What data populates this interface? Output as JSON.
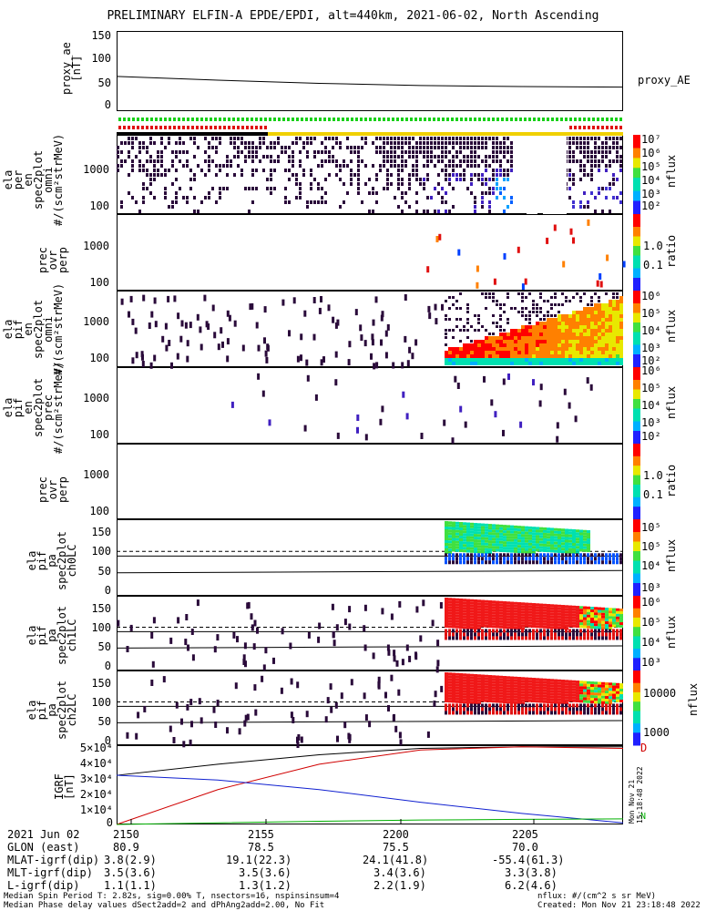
{
  "title": "PRELIMINARY ELFIN-A EPDE/EPDI, alt=440km, 2021-06-02, North Ascending",
  "panels": [
    {
      "id": "proxy",
      "label": "proxy_ae\n[nT]",
      "ticks": [
        "150",
        "100",
        "50",
        "0"
      ],
      "right_label": "proxy_AE"
    },
    {
      "id": "epde-omni",
      "label": "ela\nper\nen\nspec2plot\nomni\n#/(scm²strMeV)",
      "ticks": [
        "1000",
        "100"
      ],
      "cb_unit": "nflux"
    },
    {
      "id": "epde-prec",
      "label": "prec\novr\nperp",
      "ticks": [
        "1000",
        "100"
      ],
      "cb_unit": "ratio"
    },
    {
      "id": "epdi-omni",
      "label": "ela\npif\nen\nspec2plot\nomni\n#/(scm²strMeV)",
      "ticks": [
        "1000",
        "100"
      ],
      "cb_unit": "nflux"
    },
    {
      "id": "epdi-prec",
      "label": "ela\npif\nen\nspec2plot\nprec\n#/(scm²strMeV)",
      "ticks": [
        "1000",
        "100"
      ],
      "cb_unit": "nflux"
    },
    {
      "id": "epdi-ratio",
      "label": "prec\novr\nperp",
      "ticks": [
        "1000",
        "100"
      ],
      "cb_unit": "ratio"
    },
    {
      "id": "pa-ch0",
      "label": "ela\npif\npa\nspec2plot\nch0LC",
      "ticks": [
        "150",
        "100",
        "50",
        "0"
      ],
      "cb_unit": "nflux"
    },
    {
      "id": "pa-ch1",
      "label": "ela\npif\npa\nspec2plot\nch1LC",
      "ticks": [
        "150",
        "100",
        "50",
        "0"
      ],
      "cb_unit": "nflux"
    },
    {
      "id": "pa-ch2",
      "label": "ela\npif\npa\nspec2plot\nch2LC",
      "ticks": [
        "150",
        "100",
        "50",
        "0"
      ],
      "cb_unit": "nflux"
    },
    {
      "id": "igrf",
      "label": "IGRF\n[nT]",
      "ticks": [
        "5×10⁴",
        "4×10⁴",
        "3×10⁴",
        "2×10⁴",
        "1×10⁴",
        "0"
      ]
    }
  ],
  "colorbars": {
    "nflux1": [
      "10⁷",
      "10⁶",
      "10⁵",
      "10⁴",
      "10³",
      "10²"
    ],
    "ratio": [
      "1.0",
      "0.1"
    ],
    "nflux2": [
      "10⁶",
      "10⁵",
      "10⁴",
      "10³",
      "10²"
    ],
    "nflux3": [
      "10⁶",
      "10⁵",
      "10⁴",
      "10³",
      "10²"
    ],
    "nflux4": [
      "10⁵",
      "10⁵",
      "10⁴",
      "10³"
    ],
    "nflux5": [
      "10⁶",
      "10⁵",
      "10⁴",
      "10³"
    ],
    "nflux6": [
      "10000",
      "1000"
    ]
  },
  "igrf_labels": [
    "D",
    "N"
  ],
  "timestamp_vertical": "Mon Nov 21 15:18:48 2022",
  "axis_rows": [
    {
      "label": "2021 Jun 02",
      "values": [
        "2150",
        "2155",
        "2200",
        "2205"
      ]
    },
    {
      "label": "GLON (east)",
      "values": [
        "80.9",
        "78.5",
        "75.5",
        "70.0"
      ]
    },
    {
      "label": "MLAT-igrf(dip)",
      "values": [
        "3.8(2.9)",
        "19.1(22.3)",
        "24.1(41.8)",
        "-55.4(61.3)"
      ]
    },
    {
      "label": "MLT-igrf(dip)",
      "values": [
        "3.5(3.6)",
        "3.5(3.6)",
        "3.4(3.6)",
        "3.3(3.8)"
      ]
    },
    {
      "label": "L-igrf(dip)",
      "values": [
        "1.1(1.1)",
        "1.3(1.2)",
        "2.2(1.9)",
        "6.2(4.6)"
      ]
    }
  ],
  "footer": {
    "line1": "Median Spin Period T: 2.82s, sig=0.00% T, nsectors=16, nspinsinsum=4",
    "line2": "Median Phase delay values dSect2add=2 and dPhAng2add=2.00, No Fit",
    "right1": "nflux: #/(cm^2 s sr MeV)",
    "right2": "Created: Mon Nov 21 23:18:48 2022"
  },
  "chart_data": {
    "type": "line",
    "title": "PRELIMINARY ELFIN-A EPDE/EPDI, alt=440km, 2021-06-02, North Ascending",
    "x_ticks": [
      "2150",
      "2155",
      "2200",
      "2205"
    ],
    "proxy_ae": {
      "ylabel": "proxy_ae [nT]",
      "ylim": [
        0,
        150
      ],
      "x": [
        0,
        0.2,
        0.4,
        0.6,
        0.8,
        1.0
      ],
      "y": [
        65,
        58,
        52,
        48,
        46,
        45
      ]
    },
    "igrf": {
      "ylabel": "IGRF [nT]",
      "ylim": [
        0,
        50000
      ],
      "series": [
        {
          "name": "D",
          "color": "#000000",
          "x": [
            0,
            0.2,
            0.4,
            0.6,
            0.8,
            1.0
          ],
          "y": [
            31000,
            38000,
            44000,
            48000,
            49000,
            49000
          ]
        },
        {
          "name": "",
          "color": "#d00000",
          "x": [
            0,
            0.2,
            0.4,
            0.6,
            0.8,
            1.0
          ],
          "y": [
            0,
            22000,
            38000,
            47000,
            49000,
            48000
          ]
        },
        {
          "name": "",
          "color": "#1020d0",
          "x": [
            0,
            0.2,
            0.4,
            0.6,
            0.8,
            1.0
          ],
          "y": [
            31000,
            28000,
            22000,
            14000,
            7000,
            1000
          ]
        },
        {
          "name": "N",
          "color": "#00b000",
          "x": [
            0,
            0.2,
            0.4,
            0.6,
            0.8,
            1.0
          ],
          "y": [
            0,
            1000,
            2000,
            2800,
            3200,
            3500
          ]
        }
      ]
    }
  }
}
